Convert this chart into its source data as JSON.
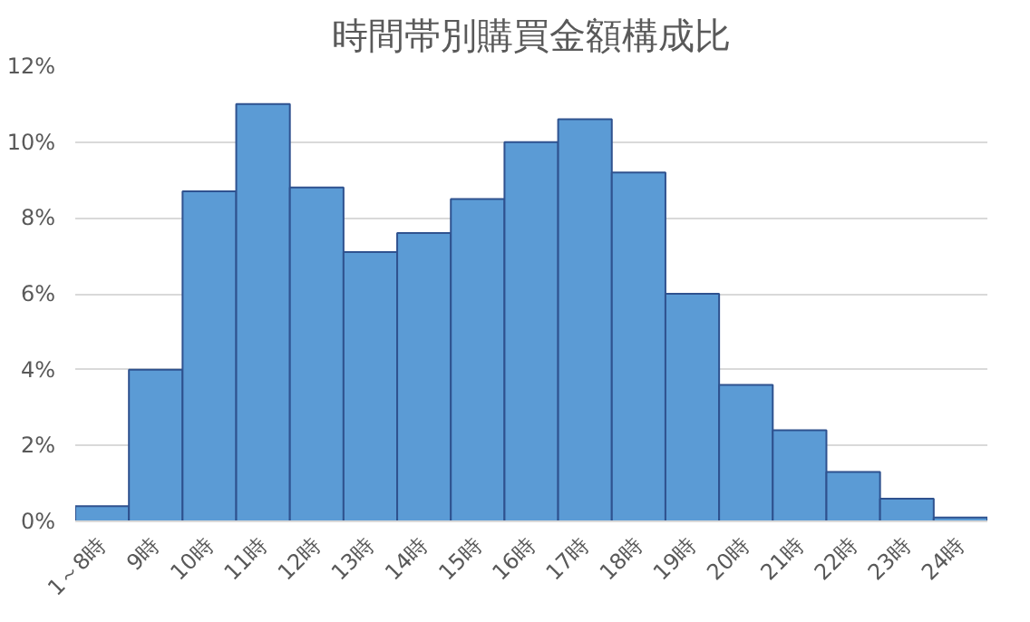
{
  "chart_data": {
    "type": "bar",
    "title": "時間帯別購買金額構成比",
    "categories": [
      "1～8時",
      "9時",
      "10時",
      "11時",
      "12時",
      "13時",
      "14時",
      "15時",
      "16時",
      "17時",
      "18時",
      "19時",
      "20時",
      "21時",
      "22時",
      "23時",
      "24時"
    ],
    "values": [
      0.4,
      4.0,
      8.7,
      11.0,
      8.8,
      7.1,
      7.6,
      8.5,
      10.0,
      10.6,
      9.2,
      6.0,
      3.6,
      2.4,
      1.3,
      0.6,
      0.1
    ],
    "color": "#5b9bd5",
    "ylim": [
      0,
      12
    ],
    "yticks": [
      {
        "value": 0,
        "label": "0%"
      },
      {
        "value": 2,
        "label": "2%"
      },
      {
        "value": 4,
        "label": "4%"
      },
      {
        "value": 6,
        "label": "6%"
      },
      {
        "value": 8,
        "label": "8%"
      },
      {
        "value": 10,
        "label": "10%"
      },
      {
        "value": 12,
        "label": "12%"
      }
    ],
    "grid": "y"
  }
}
